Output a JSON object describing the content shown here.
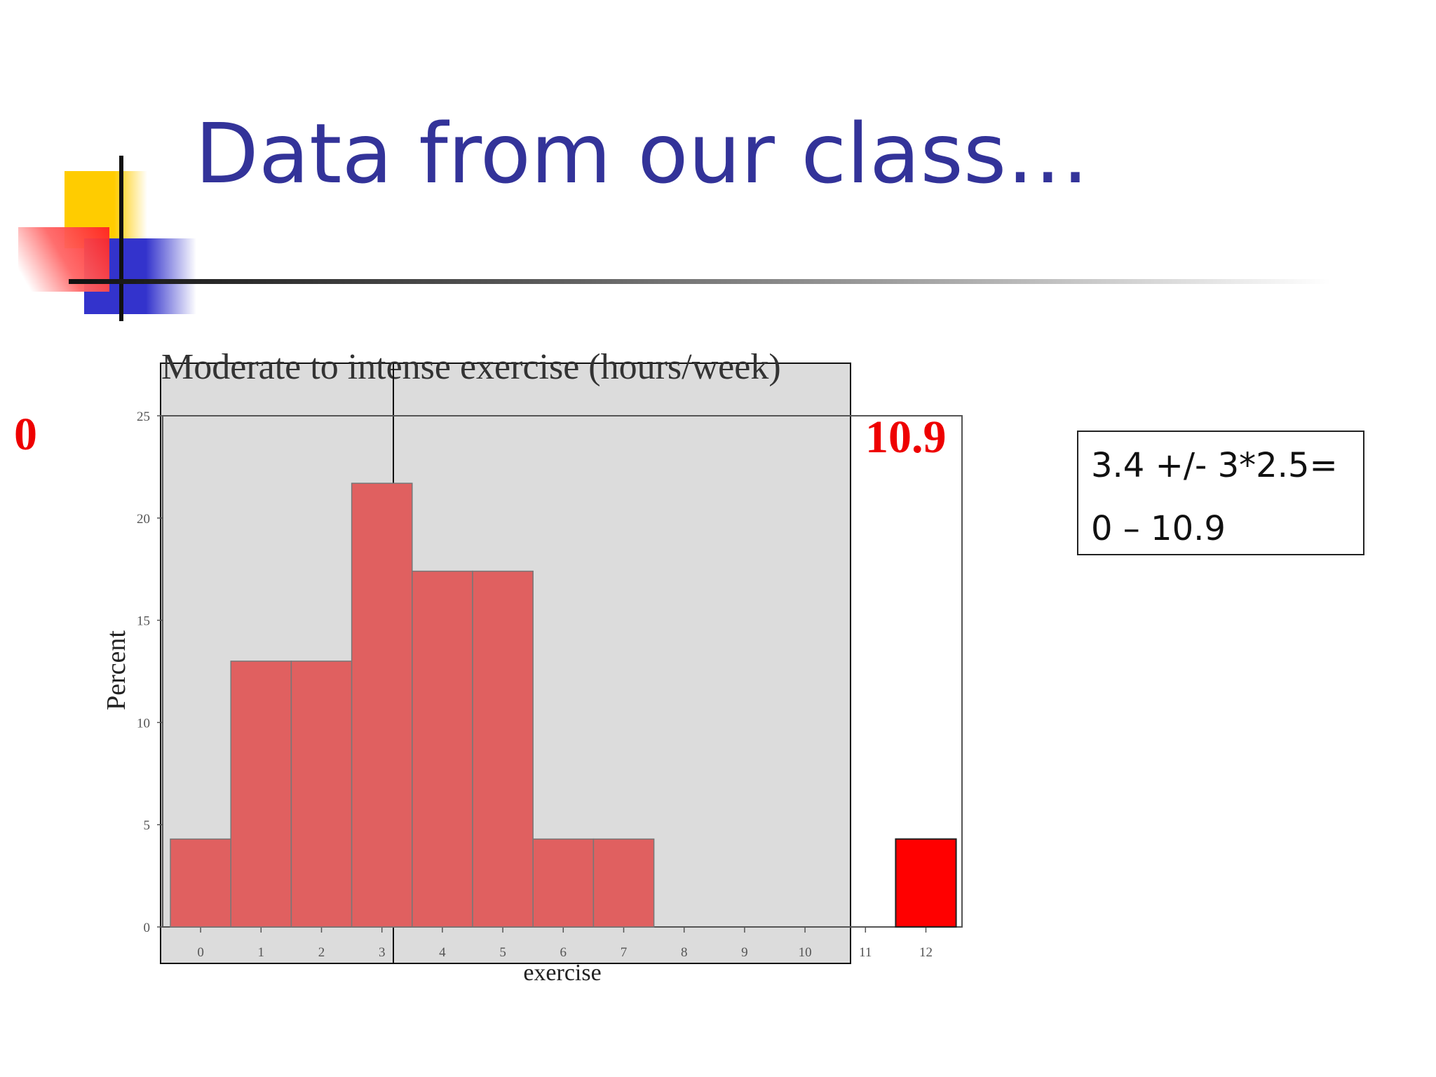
{
  "slide": {
    "title": "Data from our class…"
  },
  "formula_box": {
    "line1": "3.4 +/- 3*2.5=",
    "line2": "0 – 10.9"
  },
  "annotations": {
    "lower_bound": "0",
    "upper_bound": "10.9"
  },
  "colors": {
    "title": "#333399",
    "bar": "#e06060",
    "outlier_bar": "#ff0000",
    "shade": "#dcdcdc",
    "annotation": "#ee0000"
  },
  "chart_data": {
    "type": "bar",
    "title": "Moderate to intense exercise (hours/week)",
    "xlabel": "exercise",
    "ylabel": "Percent",
    "categories": [
      "0",
      "1",
      "2",
      "3",
      "4",
      "5",
      "6",
      "7",
      "8",
      "9",
      "10",
      "11",
      "12"
    ],
    "values": [
      4.3,
      13.0,
      13.0,
      21.7,
      17.4,
      17.4,
      4.3,
      4.3,
      0,
      0,
      0,
      0,
      4.3
    ],
    "highlighted_category": "12",
    "ylim": [
      0,
      25
    ],
    "yticks": [
      0,
      5,
      10,
      15,
      20,
      25
    ],
    "grid": false,
    "legend": "none"
  }
}
